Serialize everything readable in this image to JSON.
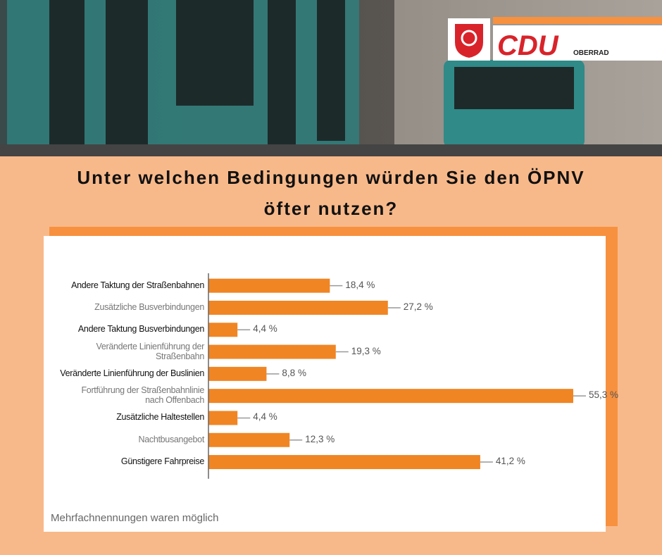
{
  "logo": {
    "party": "CDU",
    "district": "OBERRAD"
  },
  "chart_data": {
    "type": "bar",
    "orientation": "horizontal",
    "title": "Unter welchen Bedingungen würden Sie den ÖPNV\nöfter nutzen?",
    "categories": [
      "Andere Taktung der Straßenbahnen",
      "Zusätzliche Busverbindungen",
      "Andere Taktung Busverbindungen",
      "Veränderte Linienführung der\nStraßenbahn",
      "Veränderte Linienführung der Buslinien",
      "Fortführung der Straßenbahnlinie\nnach Offenbach",
      "Zusätzliche Haltestellen",
      "Nachtbusangebot",
      "Günstigere Fahrpreise"
    ],
    "values": [
      18.4,
      27.2,
      4.4,
      19.3,
      8.8,
      55.3,
      4.4,
      12.3,
      41.2
    ],
    "value_labels": [
      "18,4 %",
      "27,2 %",
      "4,4 %",
      "19,3 %",
      "8,8 %",
      "55,3 %",
      "4,4 %",
      "12,3 %",
      "41,2 %"
    ],
    "color": "#f08524",
    "xlim": [
      0,
      60
    ],
    "footnote": "Mehrfachnennungen waren möglich"
  }
}
